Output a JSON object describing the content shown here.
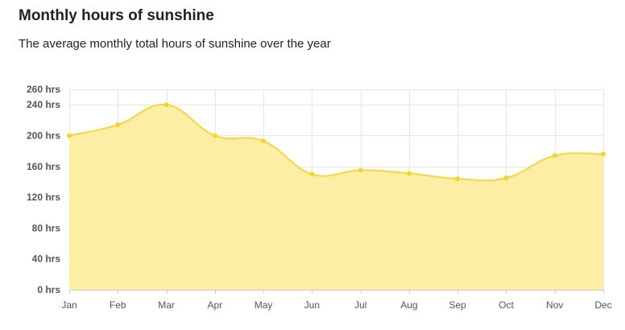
{
  "title": "Monthly hours of sunshine",
  "subtitle": "The average monthly total hours of sunshine over the year",
  "colors": {
    "line": "#f7d63b",
    "fill": "#fdeea6",
    "point": "#f5d32a",
    "grid": "#e6e6e6"
  },
  "chart_data": {
    "type": "area",
    "title": "Monthly hours of sunshine",
    "subtitle": "The average monthly total hours of sunshine over the year",
    "categories": [
      "Jan",
      "Feb",
      "Mar",
      "Apr",
      "May",
      "Jun",
      "Jul",
      "Aug",
      "Sep",
      "Oct",
      "Nov",
      "Dec"
    ],
    "values": [
      200,
      214,
      240,
      200,
      193,
      150,
      155,
      151,
      144,
      145,
      174,
      176
    ],
    "ylim": [
      0,
      260
    ],
    "yticks": [
      0,
      40,
      80,
      120,
      160,
      200,
      240,
      260
    ],
    "ytick_labels": [
      "0 hrs",
      "40 hrs",
      "80 hrs",
      "120 hrs",
      "160 hrs",
      "200 hrs",
      "240 hrs",
      "260 hrs"
    ],
    "grid": true,
    "legend": "none",
    "curve": "smooth"
  }
}
